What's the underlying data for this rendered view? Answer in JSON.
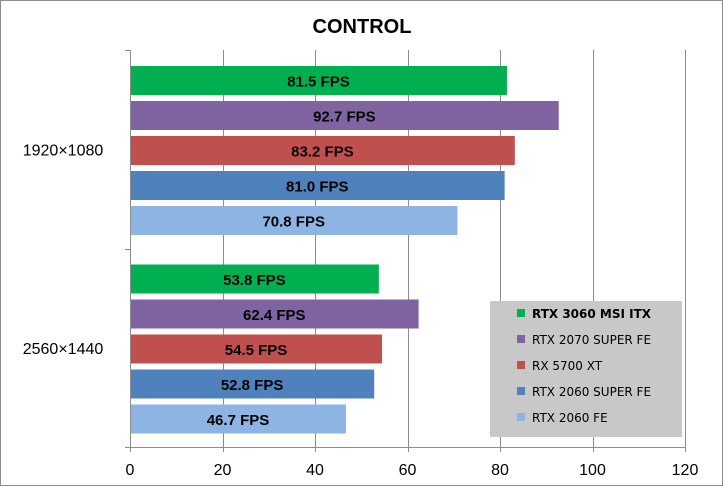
{
  "chart_data": {
    "type": "bar",
    "orientation": "horizontal",
    "title": "CONTROL",
    "categories": [
      "1920×1080",
      "2560×1440"
    ],
    "series": [
      {
        "name": "RTX 3060 MSI ITX",
        "color": "#00b050",
        "values": [
          81.5,
          53.8
        ],
        "labels": [
          "81.5 FPS",
          "53.8 FPS"
        ],
        "legend_bold": true
      },
      {
        "name": "RTX 2070 SUPER FE",
        "color": "#8064a2",
        "values": [
          92.7,
          62.4
        ],
        "labels": [
          "92.7 FPS",
          "62.4 FPS"
        ]
      },
      {
        "name": "RX 5700 XT",
        "color": "#c0504d",
        "values": [
          83.2,
          54.5
        ],
        "labels": [
          "83.2 FPS",
          "54.5 FPS"
        ]
      },
      {
        "name": "RTX 2060 SUPER FE",
        "color": "#4f81bd",
        "values": [
          81.0,
          52.8
        ],
        "labels": [
          "81.0 FPS",
          "52.8 FPS"
        ]
      },
      {
        "name": "RTX 2060 FE",
        "color": "#8db4e2",
        "values": [
          70.8,
          46.7
        ],
        "labels": [
          "70.8 FPS",
          "46.7 FPS"
        ]
      }
    ],
    "xlim": [
      0,
      120
    ],
    "xticks": [
      0,
      20,
      40,
      60,
      80,
      100,
      120
    ],
    "xtick_labels": [
      "0",
      "20",
      "40",
      "60",
      "80",
      "100",
      "120"
    ],
    "grid": true,
    "legend_position": "bottom-right"
  }
}
